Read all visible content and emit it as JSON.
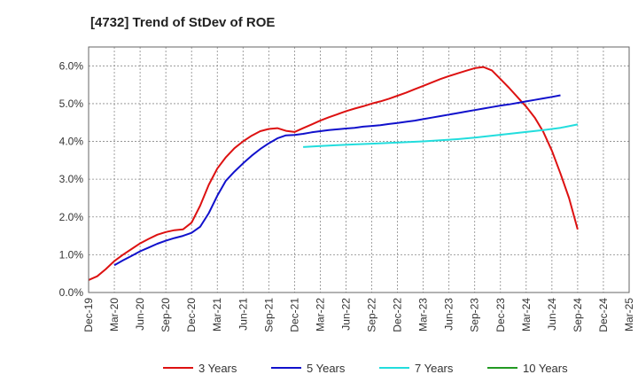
{
  "chart_data": {
    "type": "line",
    "title": "[4732]  Trend of StDev of ROE",
    "xlabel": "",
    "ylabel": "",
    "ylim": [
      0,
      6.5
    ],
    "y_ticks": [
      "0.0%",
      "1.0%",
      "2.0%",
      "3.0%",
      "4.0%",
      "5.0%",
      "6.0%"
    ],
    "x_ticks": [
      "Dec-19",
      "Mar-20",
      "Jun-20",
      "Sep-20",
      "Dec-20",
      "Mar-21",
      "Jun-21",
      "Sep-21",
      "Dec-21",
      "Mar-22",
      "Jun-22",
      "Sep-22",
      "Dec-22",
      "Mar-23",
      "Jun-23",
      "Sep-23",
      "Dec-23",
      "Mar-24",
      "Jun-24",
      "Sep-24",
      "Dec-24",
      "Mar-25"
    ],
    "grid": true,
    "legend_position": "bottom",
    "series": [
      {
        "name": "3 Years",
        "color": "#dd1111",
        "points": [
          [
            0,
            0.33
          ],
          [
            1,
            0.43
          ],
          [
            2,
            0.62
          ],
          [
            3,
            0.83
          ],
          [
            4,
            1.0
          ],
          [
            5,
            1.15
          ],
          [
            6,
            1.3
          ],
          [
            7,
            1.42
          ],
          [
            8,
            1.53
          ],
          [
            9,
            1.6
          ],
          [
            10,
            1.65
          ],
          [
            11,
            1.67
          ],
          [
            12,
            1.85
          ],
          [
            13,
            2.3
          ],
          [
            14,
            2.85
          ],
          [
            15,
            3.28
          ],
          [
            16,
            3.58
          ],
          [
            17,
            3.82
          ],
          [
            18,
            4.0
          ],
          [
            19,
            4.15
          ],
          [
            20,
            4.27
          ],
          [
            21,
            4.33
          ],
          [
            22,
            4.35
          ],
          [
            23,
            4.28
          ],
          [
            24,
            4.25
          ],
          [
            25,
            4.35
          ],
          [
            26,
            4.45
          ],
          [
            27,
            4.55
          ],
          [
            28,
            4.64
          ],
          [
            29,
            4.72
          ],
          [
            30,
            4.8
          ],
          [
            31,
            4.87
          ],
          [
            32,
            4.93
          ],
          [
            33,
            5.0
          ],
          [
            34,
            5.06
          ],
          [
            35,
            5.13
          ],
          [
            36,
            5.21
          ],
          [
            37,
            5.29
          ],
          [
            38,
            5.38
          ],
          [
            39,
            5.47
          ],
          [
            40,
            5.56
          ],
          [
            41,
            5.65
          ],
          [
            42,
            5.73
          ],
          [
            43,
            5.8
          ],
          [
            44,
            5.87
          ],
          [
            45,
            5.94
          ],
          [
            46,
            5.97
          ],
          [
            47,
            5.88
          ],
          [
            48,
            5.65
          ],
          [
            49,
            5.42
          ],
          [
            50,
            5.17
          ],
          [
            51,
            4.92
          ],
          [
            52,
            4.63
          ],
          [
            53,
            4.25
          ],
          [
            54,
            3.75
          ],
          [
            55,
            3.15
          ],
          [
            56,
            2.5
          ],
          [
            57,
            1.67
          ]
        ]
      },
      {
        "name": "5 Years",
        "color": "#1111cc",
        "points": [
          [
            3,
            0.72
          ],
          [
            4,
            0.85
          ],
          [
            5,
            0.97
          ],
          [
            6,
            1.09
          ],
          [
            7,
            1.19
          ],
          [
            8,
            1.29
          ],
          [
            9,
            1.37
          ],
          [
            10,
            1.44
          ],
          [
            11,
            1.5
          ],
          [
            12,
            1.58
          ],
          [
            13,
            1.74
          ],
          [
            14,
            2.1
          ],
          [
            15,
            2.56
          ],
          [
            16,
            2.96
          ],
          [
            17,
            3.2
          ],
          [
            18,
            3.42
          ],
          [
            19,
            3.62
          ],
          [
            20,
            3.8
          ],
          [
            21,
            3.95
          ],
          [
            22,
            4.08
          ],
          [
            23,
            4.16
          ],
          [
            24,
            4.17
          ],
          [
            25,
            4.2
          ],
          [
            26,
            4.24
          ],
          [
            27,
            4.27
          ],
          [
            28,
            4.3
          ],
          [
            29,
            4.32
          ],
          [
            30,
            4.34
          ],
          [
            31,
            4.36
          ],
          [
            32,
            4.39
          ],
          [
            33,
            4.41
          ],
          [
            34,
            4.43
          ],
          [
            35,
            4.46
          ],
          [
            36,
            4.49
          ],
          [
            37,
            4.52
          ],
          [
            38,
            4.55
          ],
          [
            39,
            4.59
          ],
          [
            40,
            4.63
          ],
          [
            41,
            4.67
          ],
          [
            42,
            4.71
          ],
          [
            43,
            4.75
          ],
          [
            44,
            4.79
          ],
          [
            45,
            4.83
          ],
          [
            46,
            4.87
          ],
          [
            47,
            4.91
          ],
          [
            48,
            4.95
          ],
          [
            49,
            4.98
          ],
          [
            50,
            5.02
          ],
          [
            51,
            5.06
          ],
          [
            52,
            5.1
          ],
          [
            53,
            5.14
          ],
          [
            54,
            5.18
          ],
          [
            55,
            5.22
          ]
        ]
      },
      {
        "name": "7 Years",
        "color": "#22dddd",
        "points": [
          [
            25,
            3.85
          ],
          [
            27,
            3.88
          ],
          [
            29,
            3.9
          ],
          [
            31,
            3.92
          ],
          [
            33,
            3.94
          ],
          [
            35,
            3.96
          ],
          [
            37,
            3.98
          ],
          [
            39,
            4.0
          ],
          [
            41,
            4.03
          ],
          [
            43,
            4.06
          ],
          [
            45,
            4.1
          ],
          [
            47,
            4.15
          ],
          [
            49,
            4.2
          ],
          [
            51,
            4.25
          ],
          [
            53,
            4.3
          ],
          [
            55,
            4.36
          ],
          [
            57,
            4.45
          ]
        ]
      },
      {
        "name": "10 Years",
        "color": "#229922",
        "points": []
      }
    ]
  }
}
